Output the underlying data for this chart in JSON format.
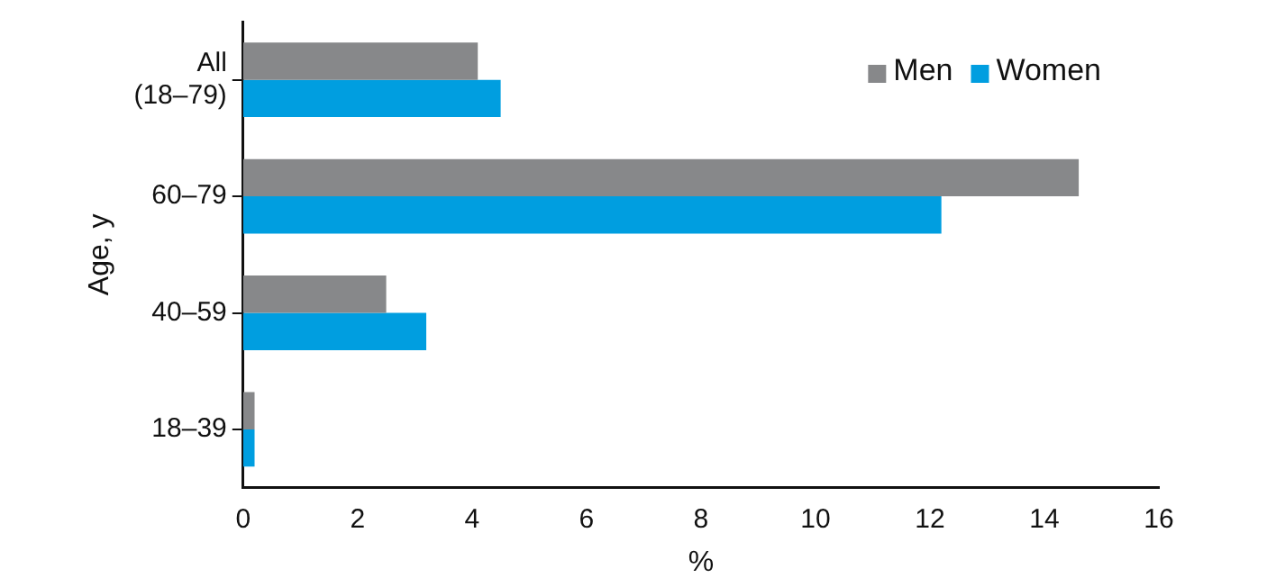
{
  "chart_data": {
    "type": "bar",
    "orientation": "horizontal",
    "xlabel": "%",
    "ylabel": "Age, y",
    "categories": [
      "All (18–79)",
      "60–79",
      "40–59",
      "18–39"
    ],
    "series": [
      {
        "name": "Men",
        "color": "#87888a",
        "values": [
          4.1,
          14.6,
          2.5,
          0.2
        ]
      },
      {
        "name": "Women",
        "color": "#009ee0",
        "values": [
          4.5,
          12.2,
          3.2,
          0.2
        ]
      }
    ],
    "xlim": [
      0,
      16
    ],
    "xticks": [
      0,
      2,
      4,
      6,
      8,
      10,
      12,
      14,
      16
    ],
    "grid": false,
    "legend": "top right"
  }
}
